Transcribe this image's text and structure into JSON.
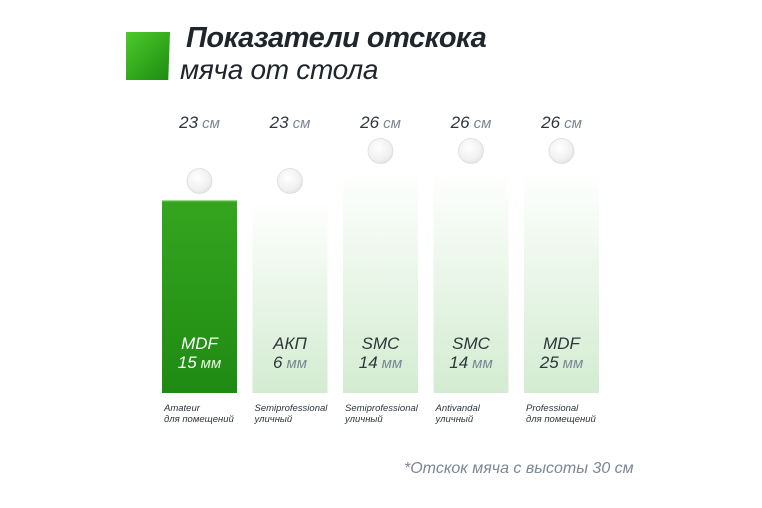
{
  "title": {
    "line1": "Показатели отскока",
    "line2": "мяча от стола"
  },
  "footnote": "*Отскок мяча с высоты 30 см",
  "colors": {
    "highlight_top": "#35a51f",
    "highlight_bottom": "#1f8a13",
    "pale_top": "#ffffff",
    "pale_bottom": "#d3ecd1",
    "ball": "#e4e4e4",
    "text_dark": "#2f363c",
    "text_gray": "#7b8794"
  },
  "chart_data": {
    "type": "bar",
    "categories": [
      "MDF 15 мм",
      "АКП 6 мм",
      "SMC 14 мм",
      "SMC 14 мм",
      "MDF 25 мм"
    ],
    "series": [
      {
        "values": [
          23,
          23,
          26,
          26,
          26
        ]
      }
    ],
    "unit": "см",
    "ylim": [
      0,
      26
    ],
    "highlighted_index": 0,
    "bars": [
      {
        "value": 23,
        "value_label": "23",
        "value_unit": "см",
        "material": "MDF",
        "thickness": "15",
        "thickness_unit": "мм",
        "class_name": "Amateur",
        "usage": "для помещений"
      },
      {
        "value": 23,
        "value_label": "23",
        "value_unit": "см",
        "material": "АКП",
        "thickness": "6",
        "thickness_unit": "мм",
        "class_name": "Semiprofessional",
        "usage": "уличный"
      },
      {
        "value": 26,
        "value_label": "26",
        "value_unit": "см",
        "material": "SMC",
        "thickness": "14",
        "thickness_unit": "мм",
        "class_name": "Semiprofessional",
        "usage": "уличный"
      },
      {
        "value": 26,
        "value_label": "26",
        "value_unit": "см",
        "material": "SMC",
        "thickness": "14",
        "thickness_unit": "мм",
        "class_name": "Antivandal",
        "usage": "уличный"
      },
      {
        "value": 26,
        "value_label": "26",
        "value_unit": "см",
        "material": "MDF",
        "thickness": "25",
        "thickness_unit": "мм",
        "class_name": "Professional",
        "usage": "для помещений"
      }
    ],
    "grid": false,
    "legend": "none"
  }
}
